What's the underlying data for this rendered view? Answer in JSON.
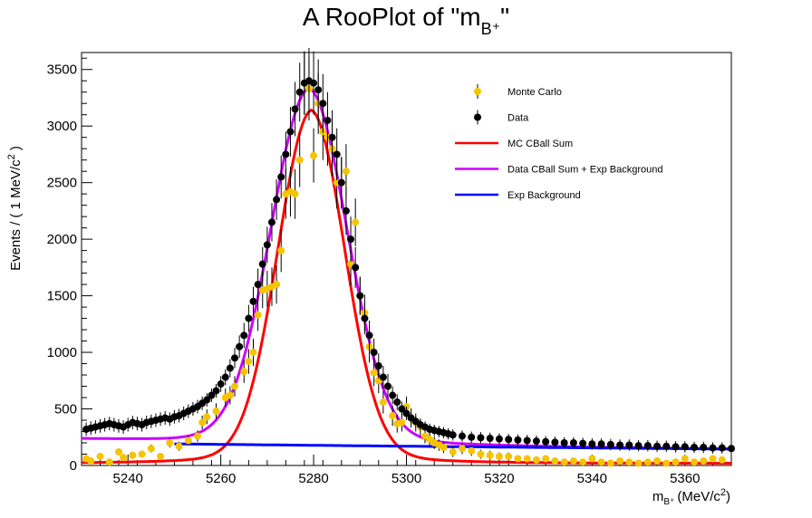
{
  "chart_data": {
    "type": "scatter",
    "title": "A RooPlot of \"m",
    "title_sub": "B⁺",
    "title_end": "\"",
    "xlabel": "m",
    "xlabel_sub": "B⁺",
    "xlabel_unit": "(MeV/c",
    "xlabel_sup": "2",
    "xlabel_end": ")",
    "ylabel": "Events / ( 1 MeV/c",
    "ylabel_sup": "2",
    "ylabel_end": " )",
    "xlim": [
      5230,
      5370
    ],
    "ylim": [
      0,
      3650
    ],
    "xticks": [
      5240,
      5260,
      5280,
      5300,
      5320,
      5340,
      5360
    ],
    "yticks": [
      0,
      500,
      1000,
      1500,
      2000,
      2500,
      3000,
      3500
    ],
    "legend_position": "top-right",
    "legend": [
      {
        "label": "Monte Carlo",
        "kind": "marker",
        "color": "#f5c400"
      },
      {
        "label": "Data",
        "kind": "marker",
        "color": "#000000"
      },
      {
        "label": "MC CBall Sum",
        "kind": "line",
        "color": "#ff0000"
      },
      {
        "label": "Data CBall Sum + Exp Background",
        "kind": "line",
        "color": "#cc00ff"
      },
      {
        "label": "Exp Background",
        "kind": "line",
        "color": "#0000ff"
      }
    ],
    "series": [
      {
        "name": "Monte Carlo",
        "kind": "points",
        "color": "#f5c400",
        "x": [
          5231,
          5232,
          5234,
          5236,
          5238,
          5239,
          5241,
          5243,
          5245,
          5247,
          5249,
          5251,
          5253,
          5255,
          5256,
          5257,
          5259,
          5261,
          5262,
          5263,
          5265,
          5266,
          5267,
          5268,
          5269,
          5270,
          5271,
          5272,
          5273,
          5274,
          5275,
          5276,
          5277,
          5278,
          5279,
          5280,
          5281,
          5282,
          5283,
          5284,
          5285,
          5286,
          5287,
          5288,
          5289,
          5290,
          5291,
          5292,
          5293,
          5294,
          5295,
          5296,
          5297,
          5298,
          5299,
          5300,
          5301,
          5302,
          5303,
          5304,
          5305,
          5306,
          5307,
          5308,
          5310,
          5312,
          5314,
          5316,
          5318,
          5320,
          5322,
          5324,
          5326,
          5328,
          5330,
          5332,
          5334,
          5336,
          5338,
          5340,
          5342,
          5344,
          5346,
          5348,
          5350,
          5352,
          5354,
          5356,
          5358,
          5360,
          5362,
          5364,
          5366,
          5368
        ],
        "y": [
          60,
          40,
          80,
          30,
          120,
          70,
          90,
          100,
          150,
          80,
          200,
          170,
          220,
          260,
          380,
          430,
          480,
          600,
          620,
          700,
          830,
          920,
          1000,
          1330,
          1550,
          1560,
          1580,
          1600,
          1900,
          2400,
          2420,
          2400,
          2700,
          3380,
          3330,
          2740,
          3200,
          2950,
          2900,
          2800,
          2500,
          2500,
          2600,
          1780,
          2150,
          1500,
          1350,
          1050,
          820,
          750,
          560,
          700,
          440,
          370,
          380,
          520,
          420,
          380,
          340,
          260,
          230,
          200,
          180,
          160,
          120,
          150,
          130,
          100,
          90,
          80,
          80,
          60,
          60,
          50,
          60,
          40,
          30,
          40,
          30,
          60,
          30,
          20,
          40,
          30,
          20,
          30,
          40,
          20,
          30,
          60,
          30,
          40,
          60,
          50
        ],
        "err": [
          20,
          20,
          25,
          20,
          30,
          25,
          30,
          30,
          35,
          30,
          40,
          40,
          45,
          50,
          60,
          65,
          70,
          80,
          80,
          90,
          100,
          110,
          120,
          140,
          160,
          160,
          170,
          170,
          190,
          220,
          220,
          220,
          240,
          280,
          280,
          240,
          270,
          250,
          250,
          240,
          230,
          230,
          240,
          190,
          210,
          170,
          160,
          140,
          120,
          110,
          100,
          110,
          90,
          80,
          80,
          90,
          85,
          80,
          75,
          65,
          60,
          55,
          50,
          50,
          45,
          50,
          45,
          40,
          40,
          35,
          35,
          30,
          30,
          30,
          30,
          25,
          25,
          25,
          25,
          30,
          25,
          20,
          25,
          25,
          20,
          25,
          25,
          20,
          25,
          30,
          25,
          25,
          30,
          30
        ]
      },
      {
        "name": "Data",
        "kind": "points",
        "color": "#000000",
        "x": [
          5231,
          5232,
          5233,
          5234,
          5235,
          5236,
          5237,
          5238,
          5239,
          5240,
          5241,
          5242,
          5243,
          5244,
          5245,
          5246,
          5247,
          5248,
          5249,
          5250,
          5251,
          5252,
          5253,
          5254,
          5255,
          5256,
          5257,
          5258,
          5259,
          5260,
          5261,
          5262,
          5263,
          5264,
          5265,
          5266,
          5267,
          5268,
          5269,
          5270,
          5271,
          5272,
          5273,
          5274,
          5275,
          5276,
          5277,
          5278,
          5279,
          5280,
          5281,
          5282,
          5283,
          5284,
          5285,
          5286,
          5287,
          5288,
          5289,
          5290,
          5291,
          5292,
          5293,
          5294,
          5295,
          5296,
          5297,
          5298,
          5299,
          5300,
          5301,
          5302,
          5303,
          5304,
          5305,
          5306,
          5307,
          5308,
          5309,
          5310,
          5312,
          5314,
          5316,
          5318,
          5320,
          5322,
          5324,
          5326,
          5328,
          5330,
          5332,
          5334,
          5336,
          5338,
          5340,
          5342,
          5344,
          5346,
          5348,
          5350,
          5352,
          5354,
          5356,
          5358,
          5360,
          5362,
          5364,
          5366,
          5368,
          5370
        ],
        "y": [
          320,
          330,
          340,
          350,
          360,
          370,
          360,
          350,
          340,
          360,
          380,
          370,
          360,
          380,
          390,
          400,
          410,
          420,
          410,
          430,
          440,
          460,
          480,
          500,
          520,
          550,
          580,
          620,
          660,
          720,
          780,
          860,
          950,
          1050,
          1150,
          1300,
          1450,
          1600,
          1780,
          1950,
          2150,
          2350,
          2550,
          2750,
          2950,
          3150,
          3300,
          3380,
          3400,
          3380,
          3320,
          3200,
          3050,
          2900,
          2750,
          2500,
          2250,
          2000,
          1750,
          1500,
          1300,
          1150,
          1000,
          880,
          780,
          700,
          620,
          560,
          500,
          460,
          420,
          390,
          360,
          340,
          320,
          310,
          300,
          290,
          280,
          270,
          260,
          250,
          245,
          240,
          235,
          230,
          225,
          220,
          215,
          210,
          205,
          200,
          200,
          195,
          190,
          190,
          185,
          180,
          180,
          175,
          175,
          170,
          170,
          165,
          165,
          160,
          160,
          155,
          155,
          150
        ],
        "err": [
          60,
          60,
          60,
          60,
          60,
          60,
          60,
          60,
          60,
          60,
          60,
          60,
          60,
          60,
          60,
          60,
          60,
          60,
          60,
          60,
          60,
          60,
          60,
          60,
          60,
          60,
          60,
          60,
          60,
          70,
          70,
          80,
          90,
          100,
          110,
          120,
          130,
          140,
          150,
          160,
          170,
          180,
          190,
          200,
          220,
          240,
          260,
          280,
          290,
          280,
          270,
          260,
          250,
          240,
          230,
          220,
          210,
          200,
          180,
          160,
          140,
          130,
          120,
          110,
          100,
          90,
          80,
          70,
          65,
          60,
          55,
          50,
          50,
          50,
          50,
          50,
          50,
          50,
          50,
          50,
          50,
          50,
          50,
          50,
          50,
          50,
          50,
          50,
          50,
          50,
          50,
          50,
          50,
          50,
          50,
          50,
          50,
          50,
          50,
          50,
          50,
          50,
          50,
          50,
          50,
          50,
          50,
          50,
          50,
          50
        ]
      },
      {
        "name": "MC CBall Sum",
        "kind": "curve",
        "color": "#ff0000",
        "peak": 3090,
        "mean": 5279.5,
        "sigma": 7.2,
        "tail": 0.06,
        "baseline": 20
      },
      {
        "name": "Data CBall Sum + Exp Background",
        "kind": "curve",
        "color": "#cc00ff",
        "peak": 3200,
        "mean": 5279,
        "sigma": 8.2,
        "tail": 0.05,
        "bg_start": 235,
        "bg_end": 145
      },
      {
        "name": "Exp Background",
        "kind": "curve",
        "color": "#0000ff",
        "start": 200,
        "end": 145,
        "x_start": 5250
      }
    ]
  }
}
